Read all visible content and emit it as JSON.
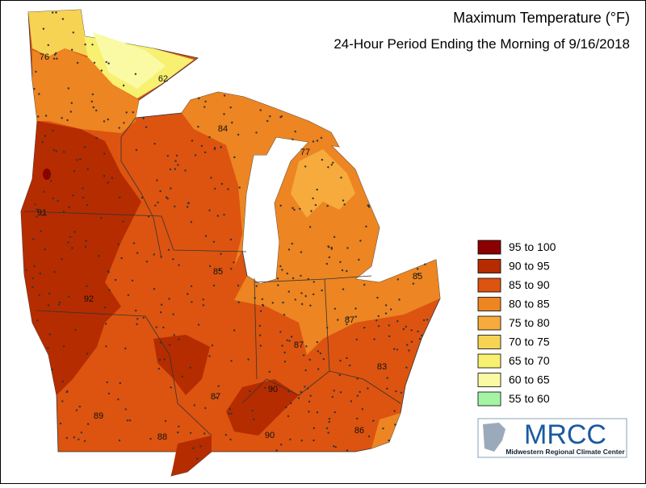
{
  "title": "Maximum Temperature (°F)",
  "subtitle": "24-Hour Period Ending the Morning of 9/16/2018",
  "legend": [
    {
      "label": "95 to 100",
      "color": "#8b0000"
    },
    {
      "label": "90 to 95",
      "color": "#b52c00"
    },
    {
      "label": "85 to 90",
      "color": "#dc5410"
    },
    {
      "label": "80 to 85",
      "color": "#ec8522"
    },
    {
      "label": "75 to 80",
      "color": "#f6ab3c"
    },
    {
      "label": "70 to 75",
      "color": "#f7d354"
    },
    {
      "label": "65 to 70",
      "color": "#f7f070"
    },
    {
      "label": "60 to 65",
      "color": "#fafaa4"
    },
    {
      "label": "55 to 60",
      "color": "#a4f4a4"
    }
  ],
  "station_labels": [
    76,
    62,
    84,
    77,
    91,
    85,
    92,
    85,
    87,
    87,
    83,
    90,
    87,
    89,
    88,
    90,
    86
  ],
  "logo": {
    "name": "MRCC",
    "full_name": "Midwestern Regional Climate Center"
  }
}
